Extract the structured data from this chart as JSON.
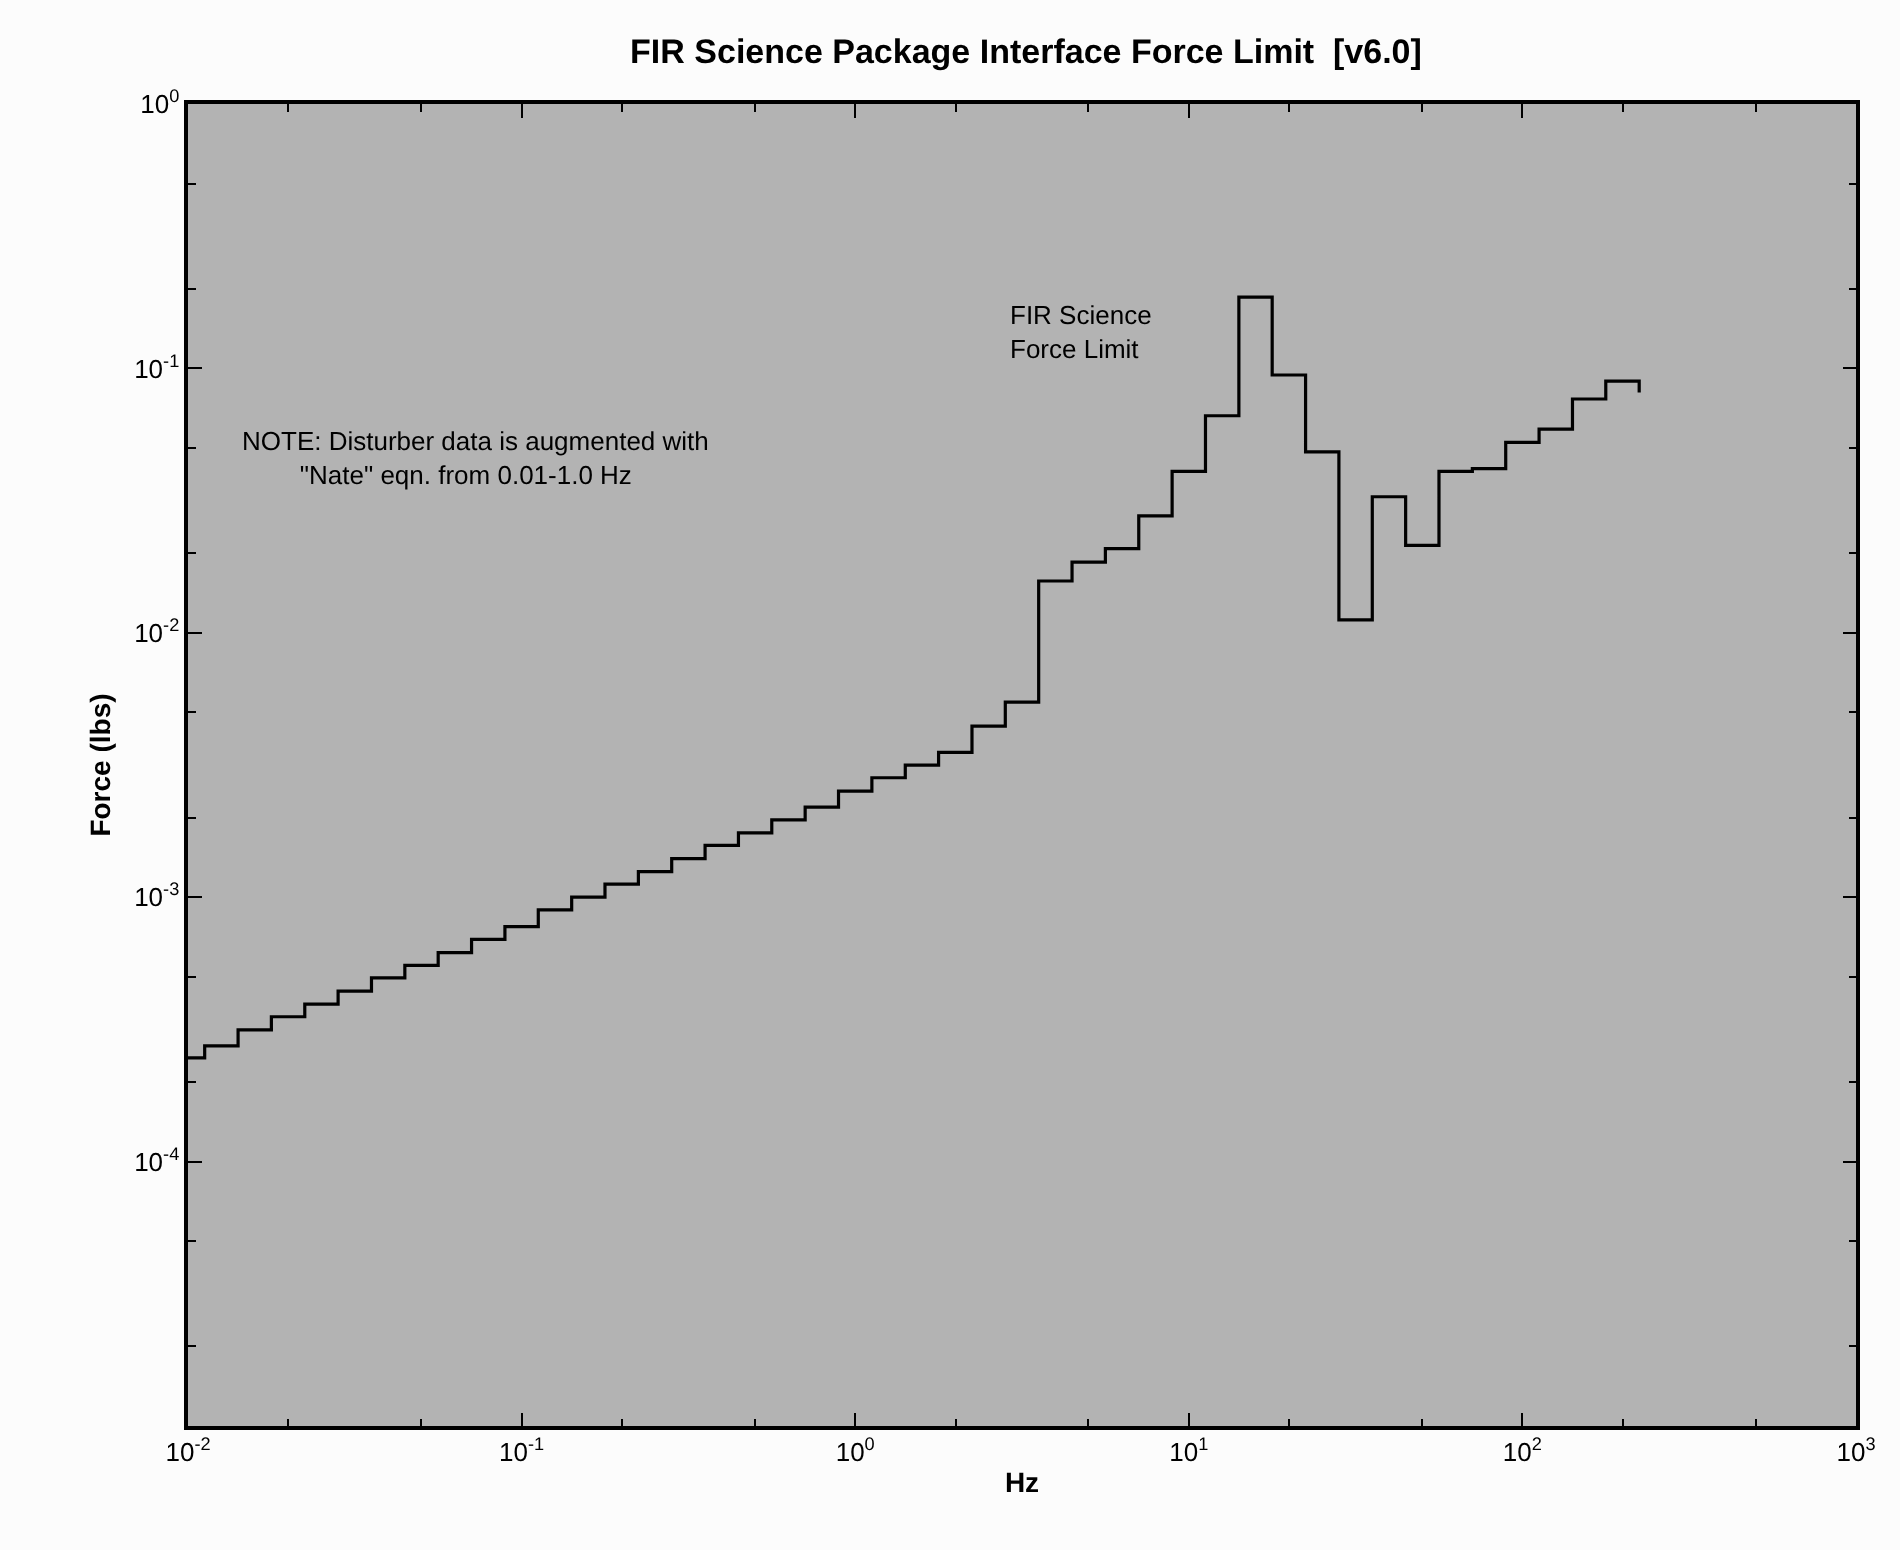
{
  "chart_data": {
    "type": "step",
    "title": "FIR Science Package Interface Force Limit  [v6.0]",
    "xlabel": "Hz",
    "ylabel": "Force (lbs)",
    "x": [
      0.01,
      0.01122,
      0.01413,
      0.01778,
      0.02239,
      0.02818,
      0.03548,
      0.04467,
      0.05623,
      0.07079,
      0.08913,
      0.1122,
      0.1413,
      0.1778,
      0.2239,
      0.2818,
      0.3548,
      0.4467,
      0.5623,
      0.7079,
      0.8913,
      1.122,
      1.413,
      1.778,
      2.239,
      2.818,
      3.548,
      4.467,
      5.623,
      7.079,
      8.913,
      11.22,
      14.13,
      17.78,
      22.39,
      28.18,
      35.48,
      44.67,
      56.23,
      70.79,
      89.13,
      112.2,
      141.3,
      177.8,
      223.9
    ],
    "series": [
      {
        "color": "#000000",
        "values": [
          0.000247,
          0.000274,
          0.000315,
          0.000353,
          0.000394,
          0.000441,
          0.000495,
          0.000552,
          0.000617,
          0.000693,
          0.000774,
          0.000895,
          0.001,
          0.00112,
          0.00125,
          0.0014,
          0.00157,
          0.00175,
          0.00196,
          0.00219,
          0.00252,
          0.00283,
          0.00316,
          0.00353,
          0.00444,
          0.00547,
          0.0157,
          0.0185,
          0.0208,
          0.0277,
          0.0408,
          0.0662,
          0.186,
          0.0944,
          0.0483,
          0.0112,
          0.0327,
          0.0214,
          0.0408,
          0.0418,
          0.0525,
          0.0589,
          0.0766,
          0.0895,
          0.0811
        ]
      }
    ],
    "annotations": [
      "FIR Science\nForce Limit",
      "NOTE: Disturber data is augmented with\n     \"Nate\" eqn. from 0.01-1.0 Hz"
    ],
    "log": "xy",
    "grid": false,
    "line_style": "solid",
    "marker": "none",
    "xlim": [
      0.01,
      1000
    ],
    "ylim": [
      1e-05,
      1
    ],
    "xticks": [
      {
        "value": 0.01,
        "label": "10$^{-2}$"
      },
      {
        "value": 0.1,
        "label": "10$^{-1}$"
      },
      {
        "value": 1,
        "label": "10$^{0}$"
      },
      {
        "value": 10,
        "label": "10$^{1}$"
      },
      {
        "value": 100,
        "label": "10$^{2}$"
      },
      {
        "value": 1000,
        "label": "10$^{3}$"
      }
    ],
    "yticks": [
      {
        "value": 0.0001,
        "label": "10$^{-4}$"
      },
      {
        "value": 0.001,
        "label": "10$^{-3}$"
      },
      {
        "value": 0.01,
        "label": "10$^{-2}$"
      },
      {
        "value": 0.1,
        "label": "10$^{-1}$"
      },
      {
        "value": 1,
        "label": "10$^{0}$"
      }
    ]
  }
}
